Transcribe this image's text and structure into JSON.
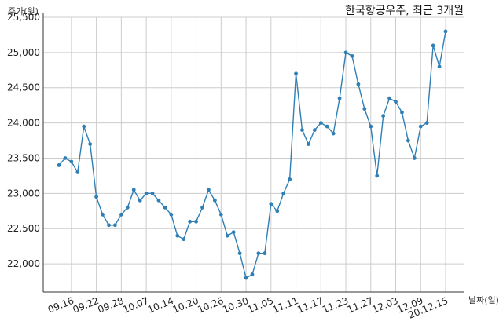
{
  "chart_data": {
    "type": "line",
    "title": "한국항공우주, 최근 3개월",
    "xlabel": "날짜(일)",
    "ylabel": "주가(원)",
    "ylim": [
      21600,
      25500
    ],
    "y_ticks": [
      22000,
      22500,
      23000,
      23500,
      24000,
      24500,
      25000,
      25500
    ],
    "y_tick_labels": [
      "22,000",
      "22,500",
      "23,000",
      "23,500",
      "24,000",
      "24,500",
      "25,000",
      "25,500"
    ],
    "x_tick_labels": [
      "09.16",
      "09.22",
      "09.28",
      "10.07",
      "10.14",
      "10.20",
      "10.26",
      "10.30",
      "11.05",
      "11.11",
      "11.17",
      "11.23",
      "11.27",
      "12.03",
      "12.09",
      "20.12.15"
    ],
    "x_tick_indices": [
      2,
      6,
      10,
      14,
      18,
      22,
      26,
      30,
      34,
      38,
      42,
      46,
      50,
      54,
      58,
      62
    ],
    "grid": true,
    "line_color": "#2f7fb5",
    "series": [
      {
        "name": "",
        "values": [
          23400,
          23500,
          23450,
          23300,
          23950,
          23700,
          22950,
          22700,
          22550,
          22550,
          22700,
          22800,
          23050,
          22900,
          23000,
          23000,
          22900,
          22800,
          22700,
          22400,
          22350,
          22600,
          22600,
          22800,
          23050,
          22900,
          22700,
          22400,
          22450,
          22150,
          21800,
          21850,
          22150,
          22150,
          22850,
          22750,
          23000,
          23200,
          24700,
          23900,
          23700,
          23900,
          24000,
          23950,
          23850,
          24350,
          25000,
          24950,
          24550,
          24200,
          23950,
          23250,
          24100,
          24350,
          24300,
          24150,
          23750,
          23500,
          23950,
          24000,
          25100,
          24800,
          25300
        ]
      }
    ]
  }
}
